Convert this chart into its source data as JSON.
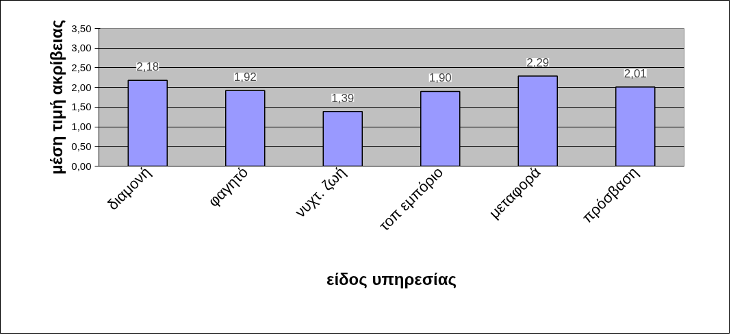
{
  "chart_data": {
    "type": "bar",
    "xlabel": "είδος υπηρεσίας",
    "ylabel": "μέση τιμή ακρίβειας",
    "categories": [
      "διαμονή",
      "φαγητό",
      "νυχτ. ζωή",
      "τοπ εμπόριο",
      "μεταφορά",
      "πρόσβαση"
    ],
    "values": [
      2.18,
      1.92,
      1.39,
      1.9,
      2.29,
      2.01
    ],
    "value_labels": [
      "2,18",
      "1,92",
      "1,39",
      "1,90",
      "2,29",
      "2,01"
    ],
    "color": "#9999ff",
    "ylim": [
      0,
      3.5
    ],
    "yticks": [
      {
        "value": 0,
        "label": "0,00"
      },
      {
        "value": 0.5,
        "label": "0,50"
      },
      {
        "value": 1,
        "label": "1,00"
      },
      {
        "value": 1.5,
        "label": "1,50"
      },
      {
        "value": 2,
        "label": "2,00"
      },
      {
        "value": 2.5,
        "label": "2,50"
      },
      {
        "value": 3,
        "label": "3,00"
      },
      {
        "value": 3.5,
        "label": "3,50"
      }
    ],
    "grid": "y"
  }
}
